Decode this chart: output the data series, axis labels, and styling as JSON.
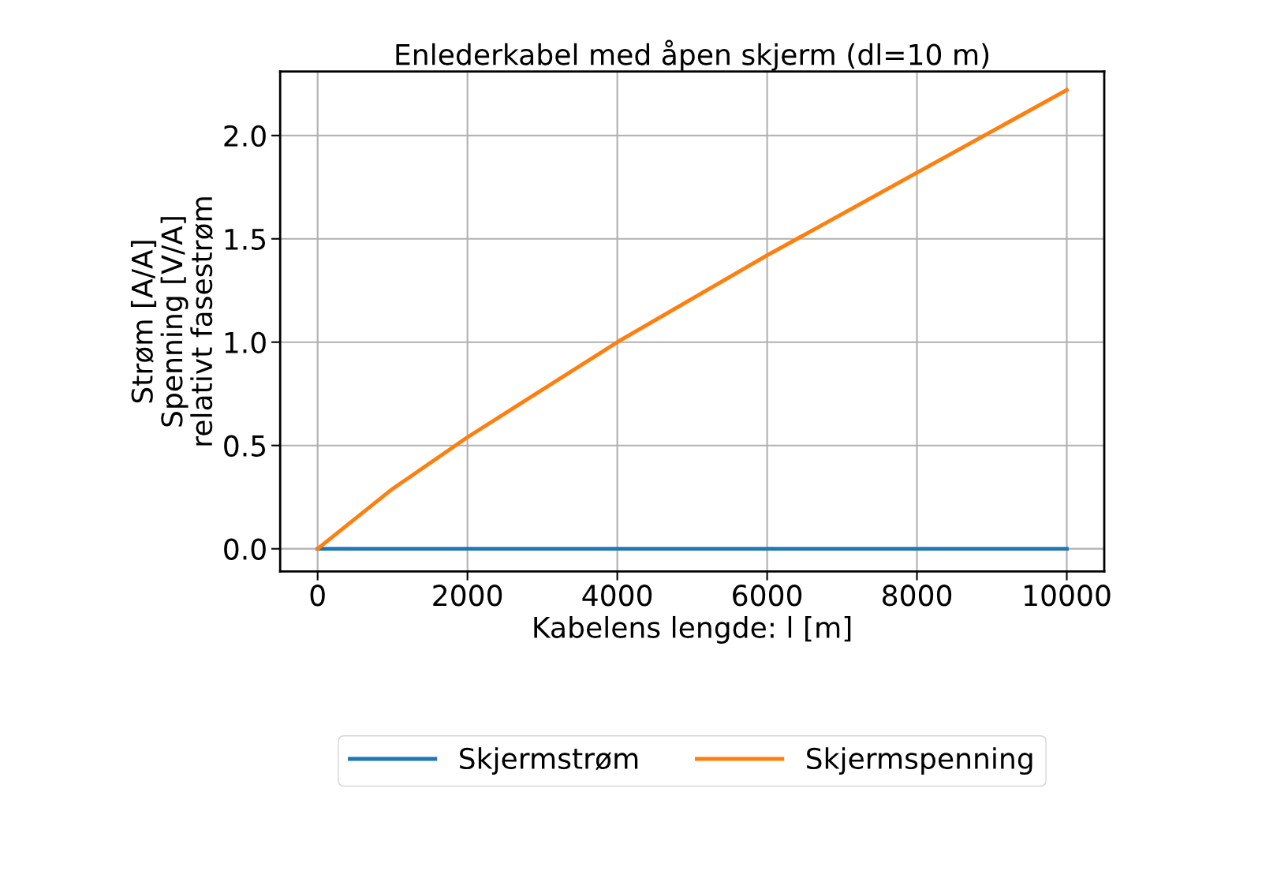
{
  "chart_data": {
    "type": "line",
    "title": "Enlederkabel med åpen skjerm (dl=10 m)",
    "xlabel": "Kabelens lengde: l [m]",
    "ylabel": "Strøm [A/A]\nSpenning [V/A]\nrelativt fasestrøm",
    "x": [
      0,
      1000,
      2000,
      4000,
      5000,
      6000,
      8000,
      10000
    ],
    "series": [
      {
        "name": "Skjermstrøm",
        "color": "#1f77b4",
        "values": [
          0,
          0,
          0,
          0,
          0,
          0,
          0,
          0
        ]
      },
      {
        "name": "Skjermspenning",
        "color": "#ff7f0e",
        "values": [
          0,
          0.29,
          0.54,
          1.0,
          1.21,
          1.42,
          1.82,
          2.22
        ]
      }
    ],
    "xlim": [
      -500,
      10500
    ],
    "xticks": [
      0,
      2000,
      4000,
      6000,
      8000,
      10000
    ],
    "ylim": [
      -0.11,
      2.31
    ],
    "yticks": [
      {
        "value": 0,
        "label": "0.0"
      },
      {
        "value": 0.5,
        "label": "0.5"
      },
      {
        "value": 1.0,
        "label": "1.0"
      },
      {
        "value": 1.5,
        "label": "1.5"
      },
      {
        "value": 2.0,
        "label": "2.0"
      }
    ],
    "grid": true,
    "legend": "bottom",
    "line_style": "solid"
  }
}
